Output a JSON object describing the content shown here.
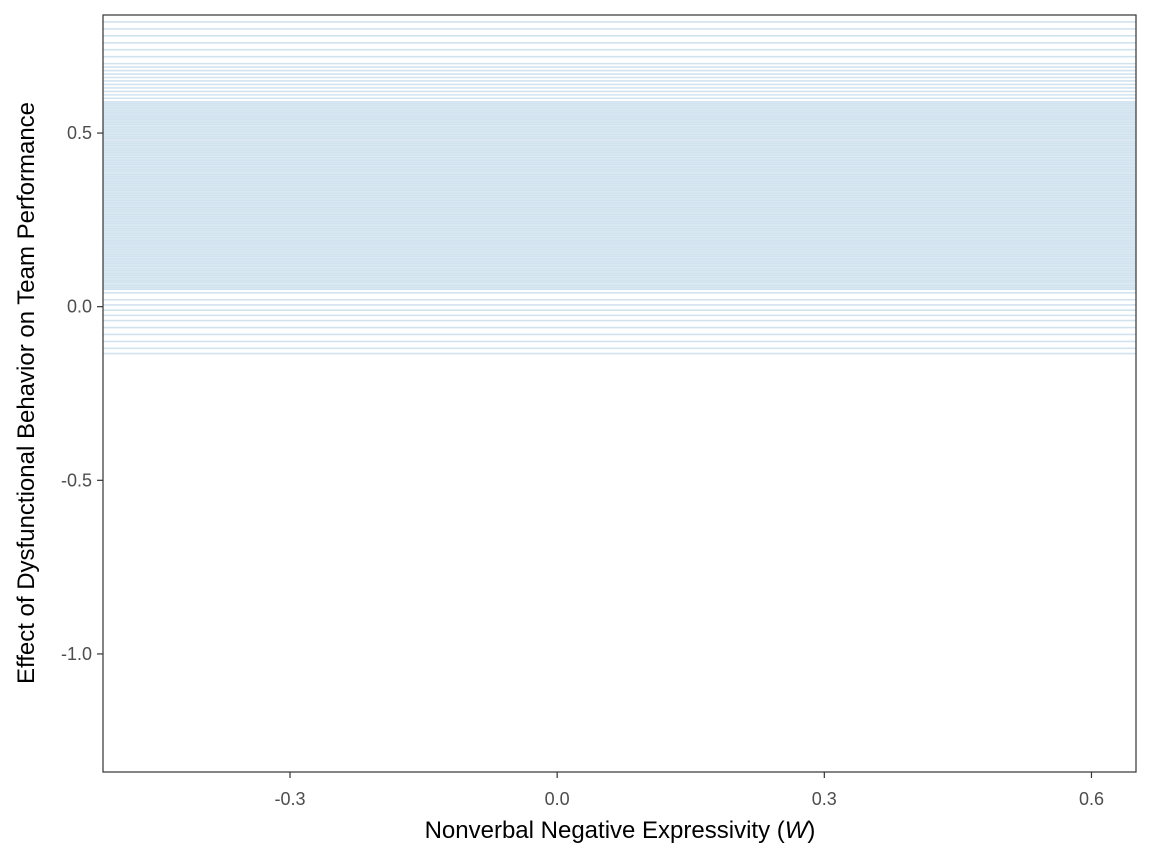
{
  "chart_data": {
    "type": "line",
    "title": "",
    "xlabel_text": "Nonverbal Negative Expressivity (",
    "xlabel_var": "W",
    "xlabel_close": ")",
    "ylabel": "Effect of Dysfunctional Behavior on Team Performance",
    "xlim": [
      -0.51,
      0.65
    ],
    "ylim": [
      -1.34,
      0.84
    ],
    "x_ticks": [
      -0.3,
      0.0,
      0.3,
      0.6
    ],
    "x_tick_labels": [
      "-0.3",
      "0.0",
      "0.3",
      "0.6"
    ],
    "y_ticks": [
      -1.0,
      -0.5,
      0.0,
      0.5
    ],
    "y_tick_labels": [
      "-1.0",
      "-0.5",
      "0.0",
      "0.5"
    ],
    "grid": false,
    "legend": "none",
    "series_color": "#4a90c2",
    "line_alpha": 0.25,
    "series_description": "posterior draws of a constant (horizontal) conditional effect; each value is the line's y-intercept",
    "lines": [
      0.82,
      0.8,
      0.78,
      0.76,
      0.74,
      0.72,
      0.7,
      0.69,
      0.68,
      0.67,
      0.66,
      0.65,
      0.64,
      0.63,
      0.62,
      0.61,
      0.6,
      0.59,
      0.585,
      0.58,
      0.575,
      0.57,
      0.565,
      0.56,
      0.555,
      0.55,
      0.545,
      0.54,
      0.535,
      0.53,
      0.525,
      0.52,
      0.515,
      0.51,
      0.505,
      0.5,
      0.495,
      0.49,
      0.485,
      0.48,
      0.475,
      0.47,
      0.465,
      0.46,
      0.455,
      0.45,
      0.445,
      0.44,
      0.435,
      0.43,
      0.425,
      0.42,
      0.415,
      0.41,
      0.405,
      0.4,
      0.395,
      0.39,
      0.385,
      0.38,
      0.375,
      0.37,
      0.365,
      0.36,
      0.355,
      0.35,
      0.345,
      0.34,
      0.335,
      0.33,
      0.325,
      0.32,
      0.315,
      0.31,
      0.305,
      0.3,
      0.295,
      0.29,
      0.285,
      0.28,
      0.275,
      0.27,
      0.265,
      0.26,
      0.255,
      0.25,
      0.245,
      0.24,
      0.235,
      0.23,
      0.225,
      0.22,
      0.215,
      0.21,
      0.205,
      0.2,
      0.195,
      0.19,
      0.185,
      0.18,
      0.175,
      0.17,
      0.165,
      0.16,
      0.155,
      0.15,
      0.145,
      0.14,
      0.135,
      0.13,
      0.125,
      0.12,
      0.115,
      0.11,
      0.105,
      0.1,
      0.095,
      0.09,
      0.085,
      0.08,
      0.075,
      0.07,
      0.065,
      0.06,
      0.055,
      0.05,
      0.04,
      0.02,
      0.005,
      -0.01,
      -0.025,
      -0.04,
      -0.06,
      -0.08,
      -0.1,
      -0.12,
      -0.135
    ]
  }
}
